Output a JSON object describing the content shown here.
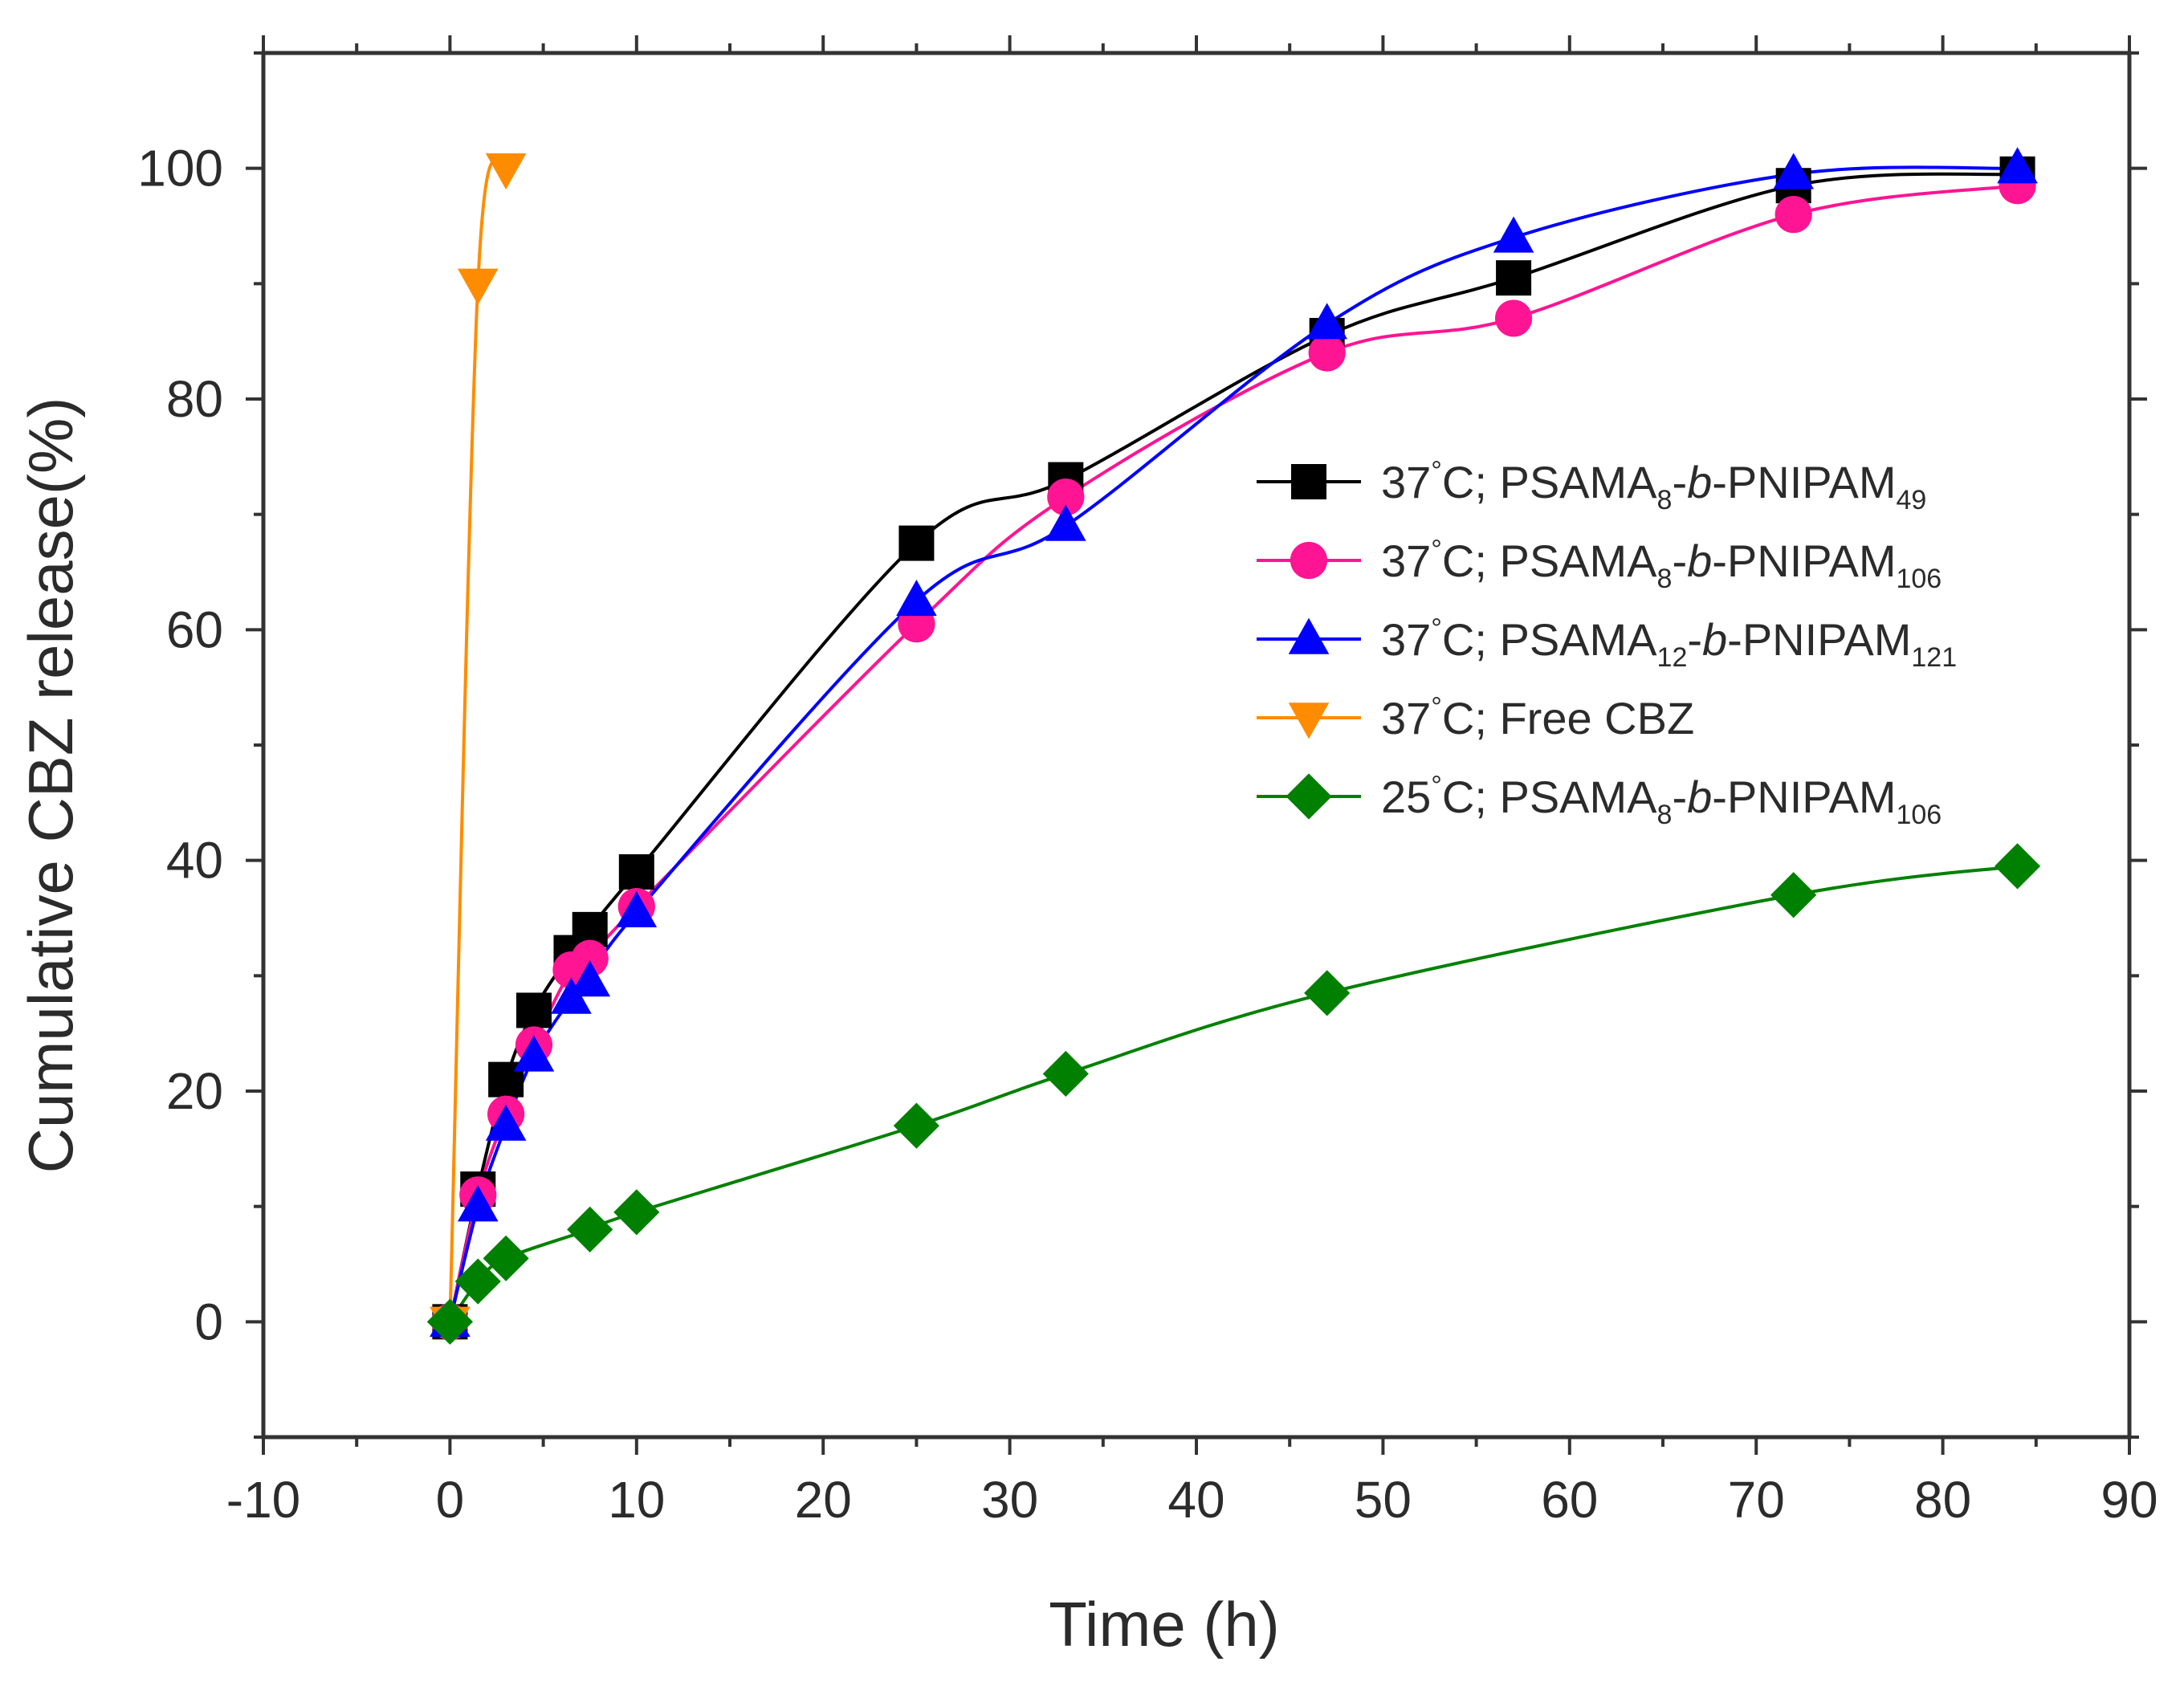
{
  "chart_data": {
    "type": "line",
    "title": "",
    "xlabel": "Time (h)",
    "ylabel": "Cumulative CBZ release(%)",
    "xlim": [
      -10,
      90
    ],
    "ylim": [
      -10,
      110
    ],
    "xticks": [
      -10,
      0,
      10,
      20,
      30,
      40,
      50,
      60,
      70,
      80,
      90
    ],
    "yticks": [
      0,
      20,
      40,
      60,
      80,
      100
    ],
    "x_tick_labels": [
      "-10",
      "0",
      "10",
      "20",
      "30",
      "40",
      "50",
      "60",
      "70",
      "80",
      "90"
    ],
    "y_tick_labels": [
      "0",
      "20",
      "40",
      "60",
      "80",
      "100"
    ],
    "grid": false,
    "legend_position": "right-middle",
    "series": [
      {
        "name": "37°C; PSAMA8-b-PNIPAM49",
        "label_parts": {
          "pre": "37",
          "deg": "°",
          "post": "C; PSAMA",
          "sub1": "8",
          "mid": "-",
          "italic": "b",
          "mid2": "-PNIPAM",
          "sub2": "49"
        },
        "color": "#000000",
        "marker": "square",
        "x": [
          0,
          1.5,
          3,
          4.5,
          6.5,
          7.5,
          10,
          25,
          33,
          47,
          57,
          72,
          84
        ],
        "y": [
          0,
          11.5,
          21,
          27,
          32,
          34,
          39,
          67.5,
          73,
          85.5,
          90.5,
          98.5,
          99.5
        ]
      },
      {
        "name": "37°C; PSAMA8-b-PNIPAM106",
        "label_parts": {
          "pre": "37",
          "deg": "°",
          "post": "C; PSAMA",
          "sub1": "8",
          "mid": "-",
          "italic": "b",
          "mid2": "-PNIPAM",
          "sub2": "106"
        },
        "color": "#ff1493",
        "marker": "circle",
        "x": [
          0,
          1.5,
          3,
          4.5,
          6.5,
          7.5,
          10,
          25,
          33,
          47,
          57,
          72,
          84
        ],
        "y": [
          0,
          11,
          18,
          24,
          30.5,
          31.5,
          36,
          60.5,
          71.5,
          84,
          87,
          96,
          98.5
        ]
      },
      {
        "name": "37°C; PSAMA12-b-PNIPAM121",
        "label_parts": {
          "pre": "37",
          "deg": "°",
          "post": "C; PSAMA",
          "sub1": "12",
          "mid": "-",
          "italic": "b",
          "mid2": "-PNIPAM",
          "sub2": "121"
        },
        "color": "#0000ff",
        "marker": "triangle-up",
        "x": [
          0,
          1.5,
          3,
          4.5,
          6.5,
          7.5,
          10,
          25,
          33,
          47,
          57,
          72,
          84
        ],
        "y": [
          0,
          10,
          17,
          23,
          28,
          29.5,
          35.5,
          62.5,
          69,
          86.5,
          94,
          99.5,
          100
        ]
      },
      {
        "name": "37°C; Free CBZ",
        "label_parts": {
          "pre": "37",
          "deg": "°",
          "post": "C; Free CBZ",
          "sub1": "",
          "mid": "",
          "italic": "",
          "mid2": "",
          "sub2": ""
        },
        "color": "#ff8c00",
        "marker": "triangle-down",
        "x": [
          0,
          1.5,
          3
        ],
        "y": [
          0,
          90,
          100
        ]
      },
      {
        "name": "25°C; PSAMA8-b-PNIPAM106",
        "label_parts": {
          "pre": "25",
          "deg": "°",
          "post": "C; PSAMA",
          "sub1": "8",
          "mid": "-",
          "italic": "b",
          "mid2": "-PNIPAM",
          "sub2": "106"
        },
        "color": "#008000",
        "marker": "diamond",
        "x": [
          0,
          1.5,
          3,
          7.5,
          10,
          25,
          33,
          47,
          72,
          84
        ],
        "y": [
          0,
          3.5,
          5.5,
          8,
          9.5,
          17,
          21.5,
          28.5,
          37,
          39.5
        ]
      }
    ]
  }
}
